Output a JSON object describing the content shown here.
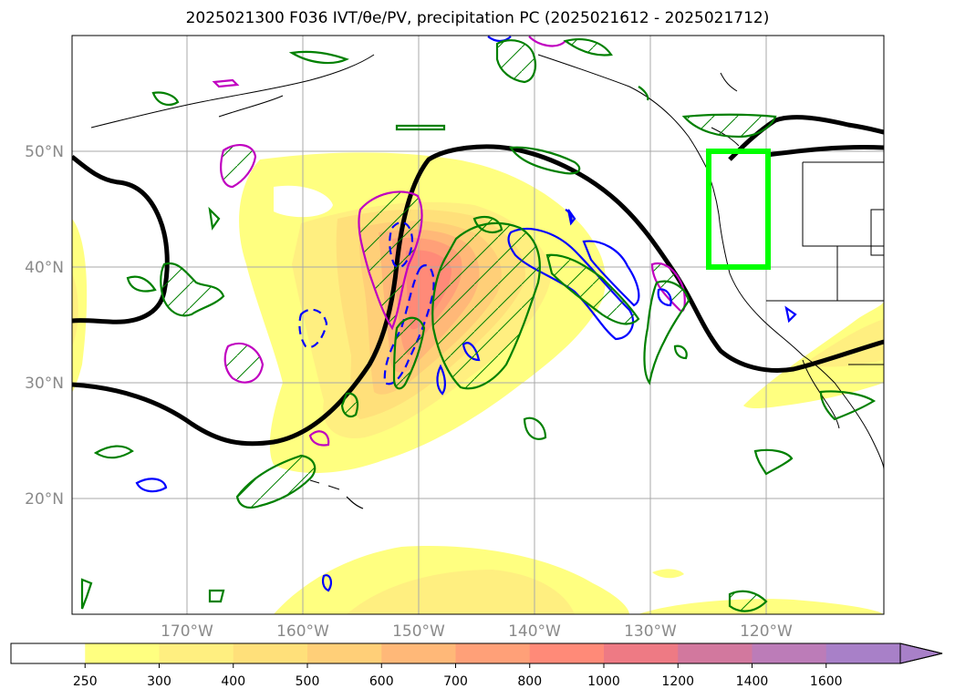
{
  "title": "2025021300 F036 IVT/θe/PV, precipitation PC (2025021612 - 2025021712)",
  "map": {
    "lon_range": [
      -180,
      -110
    ],
    "lat_range": [
      10,
      60
    ],
    "lat_labels": [
      "20°N",
      "30°N",
      "40°N",
      "50°N"
    ],
    "lon_labels": [
      "170°W",
      "160°W",
      "150°W",
      "140°W",
      "130°W",
      "120°W"
    ],
    "highlight_box": {
      "lon": [
        -125,
        -120
      ],
      "lat": [
        40,
        50
      ],
      "color": "#00ff00"
    },
    "grid": true
  },
  "colorbar": {
    "levels": [
      "250",
      "300",
      "400",
      "500",
      "600",
      "700",
      "800",
      "1000",
      "1200",
      "1400",
      "1600"
    ],
    "colors": [
      "#ffffff",
      "#ffff80",
      "#ffef80",
      "#ffe07a",
      "#ffcf78",
      "#ffb878",
      "#ffa078",
      "#ff8a78",
      "#ee7a84",
      "#d2789e",
      "#bc7cb8",
      "#a880c8"
    ],
    "extend": "max"
  },
  "colors": {
    "pv_contour": "#000000",
    "theta_warm": "#0000ff",
    "theta_cold": "#c000c0",
    "precip_pc": "#008000",
    "gridline": "#a8a8a8",
    "tick_label": "#8a8a8a"
  }
}
